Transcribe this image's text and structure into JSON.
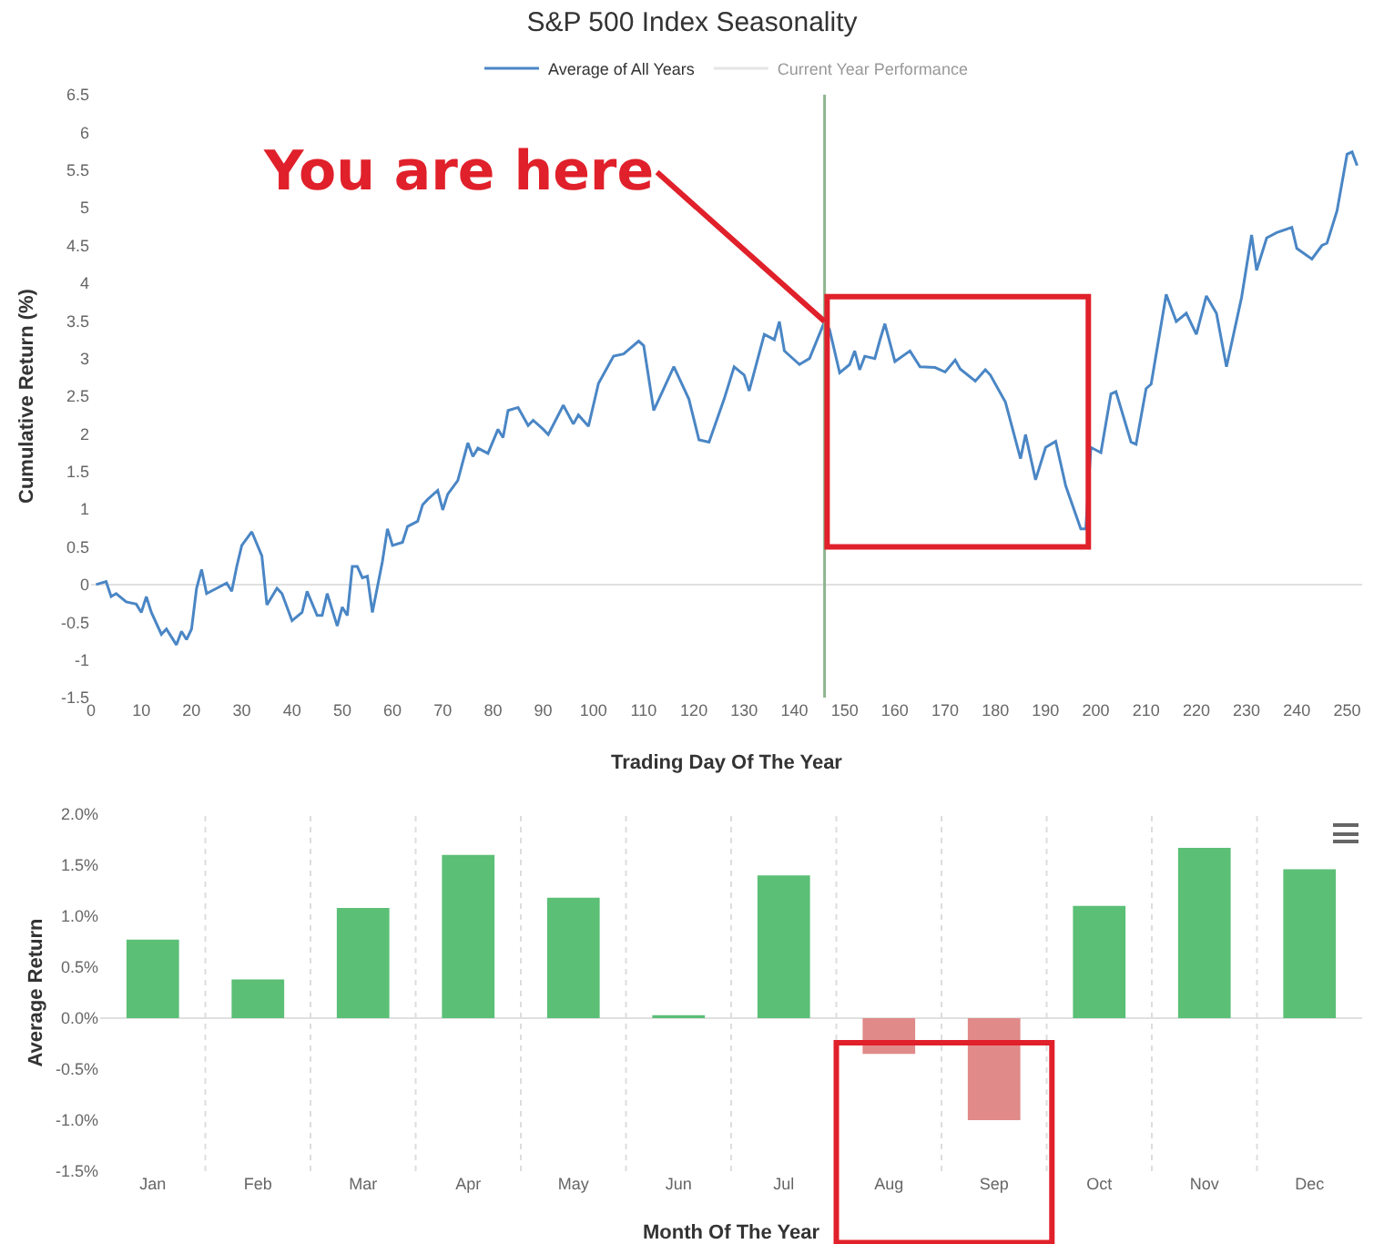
{
  "chart_data": [
    {
      "type": "line",
      "title": "S&P 500 Index Seasonality",
      "xlabel": "Trading Day Of The Year",
      "ylabel": "Cumulative Return (%)",
      "xlim": [
        0,
        253
      ],
      "xticks": [
        0,
        10,
        20,
        30,
        40,
        50,
        60,
        70,
        80,
        90,
        100,
        110,
        120,
        130,
        140,
        150,
        160,
        170,
        180,
        190,
        200,
        210,
        220,
        230,
        240,
        250
      ],
      "ylim": [
        -1.5,
        6.5
      ],
      "yticks": [
        -1.5,
        -1,
        -0.5,
        0,
        0.5,
        1,
        1.5,
        2,
        2.5,
        3,
        3.5,
        4,
        4.5,
        5,
        5.5,
        6,
        6.5
      ],
      "grid": false,
      "legend": "top",
      "series": [
        {
          "name": "Average of All Years",
          "color": "#4a86c5",
          "x": [
            1,
            3,
            4,
            5,
            7,
            9,
            10,
            11,
            12,
            14,
            15,
            17,
            18,
            19,
            20,
            21,
            22,
            23,
            25,
            27,
            28,
            29,
            30,
            32,
            34,
            35,
            37,
            38,
            40,
            42,
            43,
            45,
            46,
            47,
            49,
            50,
            51,
            52,
            53,
            54,
            55,
            56,
            58,
            59,
            60,
            62,
            63,
            65,
            66,
            67,
            69,
            70,
            71,
            73,
            75,
            76,
            77,
            79,
            81,
            82,
            83,
            85,
            87,
            88,
            90,
            91,
            94,
            96,
            97,
            99,
            101,
            104,
            106,
            109,
            110,
            112,
            116,
            119,
            121,
            123,
            126,
            128,
            130,
            131,
            134,
            136,
            137,
            138,
            141,
            143,
            146,
            147,
            149,
            151,
            152,
            153,
            154,
            156,
            157,
            158,
            160,
            163,
            165,
            168,
            170,
            172,
            173,
            176,
            178,
            179,
            182,
            185,
            186,
            188,
            190,
            192,
            194,
            197,
            198,
            199,
            201,
            203,
            204,
            207,
            208,
            210,
            211,
            214,
            216,
            218,
            220,
            222,
            224,
            226,
            229,
            231,
            232,
            234,
            236,
            239,
            240,
            243,
            245,
            246,
            248,
            250,
            251,
            252
          ],
          "values": [
            0.0,
            0.04,
            -0.16,
            -0.12,
            -0.23,
            -0.26,
            -0.37,
            -0.16,
            -0.37,
            -0.66,
            -0.59,
            -0.8,
            -0.62,
            -0.73,
            -0.59,
            -0.05,
            0.2,
            -0.12,
            -0.05,
            0.02,
            -0.09,
            0.24,
            0.52,
            0.7,
            0.38,
            -0.27,
            -0.05,
            -0.12,
            -0.48,
            -0.37,
            -0.09,
            -0.41,
            -0.41,
            -0.12,
            -0.55,
            -0.3,
            -0.41,
            0.24,
            0.24,
            0.09,
            0.11,
            -0.37,
            0.31,
            0.74,
            0.52,
            0.56,
            0.77,
            0.84,
            1.06,
            1.13,
            1.25,
            0.99,
            1.2,
            1.38,
            1.88,
            1.7,
            1.81,
            1.74,
            2.06,
            1.95,
            2.31,
            2.35,
            2.11,
            2.18,
            2.06,
            1.99,
            2.38,
            2.13,
            2.25,
            2.1,
            2.67,
            3.03,
            3.06,
            3.23,
            3.17,
            2.31,
            2.89,
            2.46,
            1.92,
            1.89,
            2.46,
            2.89,
            2.78,
            2.57,
            3.32,
            3.25,
            3.49,
            3.1,
            2.92,
            3.0,
            3.49,
            3.38,
            2.81,
            2.92,
            3.1,
            2.85,
            3.03,
            3.0,
            3.24,
            3.46,
            2.96,
            3.1,
            2.89,
            2.88,
            2.82,
            2.98,
            2.86,
            2.7,
            2.85,
            2.78,
            2.42,
            1.67,
            1.99,
            1.39,
            1.82,
            1.9,
            1.31,
            0.74,
            0.74,
            1.82,
            1.75,
            2.53,
            2.56,
            1.89,
            1.86,
            2.6,
            2.66,
            3.85,
            3.49,
            3.6,
            3.32,
            3.83,
            3.6,
            2.89,
            3.81,
            4.64,
            4.17,
            4.6,
            4.67,
            4.74,
            4.46,
            4.32,
            4.5,
            4.53,
            4.96,
            5.71,
            5.74,
            5.56
          ]
        },
        {
          "name": "Current Year Performance",
          "color": "#cccccc"
        }
      ],
      "ref_lines": [
        {
          "axis": "x",
          "value": 146,
          "color": "#8fb58f"
        },
        {
          "axis": "y",
          "value": 0,
          "color": "#e0e0e0"
        }
      ],
      "annotations": [
        {
          "text": "You are here",
          "x": 146,
          "y": 3.49
        }
      ]
    },
    {
      "type": "bar",
      "xlabel": "Month Of The Year",
      "ylabel": "Average Return",
      "categories": [
        "Jan",
        "Feb",
        "Mar",
        "Apr",
        "May",
        "Jun",
        "Jul",
        "Aug",
        "Sep",
        "Oct",
        "Nov",
        "Dec"
      ],
      "values": [
        0.77,
        0.38,
        1.08,
        1.6,
        1.18,
        0.03,
        1.4,
        -0.35,
        -1.0,
        1.1,
        1.67,
        1.46
      ],
      "colors": [
        "#5bbf76",
        "#5bbf76",
        "#5bbf76",
        "#5bbf76",
        "#5bbf76",
        "#5bbf76",
        "#5bbf76",
        "#e08a8a",
        "#e08a8a",
        "#5bbf76",
        "#5bbf76",
        "#5bbf76"
      ],
      "ylim": [
        -1.5,
        2.0
      ],
      "yticks": [
        {
          "value": -1.5,
          "label": "-1.5%"
        },
        {
          "value": -1,
          "label": "-1.0%"
        },
        {
          "value": -0.5,
          "label": "-0.5%"
        },
        {
          "value": 0,
          "label": "0.0%"
        },
        {
          "value": 0.5,
          "label": "0.5%"
        },
        {
          "value": 1,
          "label": "1.0%"
        },
        {
          "value": 1.5,
          "label": "1.5%"
        },
        {
          "value": 2,
          "label": "2.0%"
        }
      ],
      "ref_lines": [
        {
          "axis": "y",
          "value": 0,
          "color": "#e0e0e0"
        }
      ],
      "grid": false,
      "legend": false
    }
  ]
}
